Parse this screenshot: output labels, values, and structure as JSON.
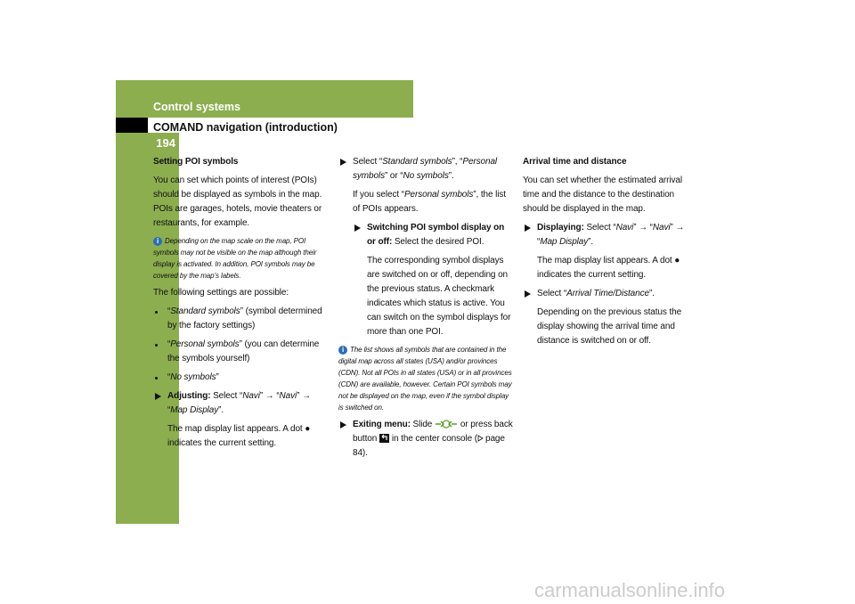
{
  "header": {
    "title": "Control systems",
    "subtitle": "COMAND navigation (introduction)",
    "page_number": "194"
  },
  "col1": {
    "heading": "Setting POI symbols",
    "intro": "You can set which points of interest (POIs) should be displayed as symbols in the map. POIs are garages, hotels, movie theaters or restaurants, for example.",
    "note": "Depending on the map scale on the map, POI symbols may not be visible on the map although their display is activated. In addition, POI symbols may be covered by the map’s labels.",
    "lead": "The following settings are possible:",
    "options": [
      [
        "“",
        "Standard symbols",
        "” (symbol determined by the factory settings)"
      ],
      [
        "“",
        "Personal symbols",
        "” (you can determine the symbols yourself)"
      ],
      [
        "“",
        "No symbols",
        "”"
      ]
    ],
    "step": [
      "Adjusting:",
      " Select “",
      "Navi",
      "” → “",
      "Navi",
      "” → “",
      "Map Display",
      "”."
    ],
    "result": "The map display list appears. A dot ● indicates the current setting."
  },
  "col2": {
    "step": [
      "Select “",
      "Standard symbols",
      "”, “",
      "Personal symbols",
      "” or “",
      "No symbols",
      "”."
    ],
    "if": [
      "If you select “",
      "Personal symbols",
      "”, the list of POIs appears."
    ],
    "substep": [
      "Switching POI symbol display on or off:",
      " Select the desired POI."
    ],
    "subresult": "The corresponding symbol displays are switched on or off, depending on the previous status. A checkmark indicates which status is active. You can switch on the symbol displays for more than one POI.",
    "note": "The list shows all symbols that are contained in the digital map across all states (USA) and/or provinces (CDN). Not all POIs in all states (USA) or in all provinces (CDN) are available, however. Certain POI symbols may not be displayed on the map, even if the symbol display is switched on.",
    "exit": [
      "Exiting menu:",
      " Slide ",
      "or press back button ",
      "in the center console (",
      "page 84)."
    ]
  },
  "col3": {
    "heading": "Arrival time and distance",
    "intro": "You can set whether the estimated arrival time and the distance to the destination should be displayed in the map.",
    "step": [
      "Displaying:",
      " Select “",
      "Navi",
      "” → “",
      "Navi",
      "” → “",
      "Map Display",
      "”."
    ],
    "result": "The map display list appears. A dot ● indicates the current setting.",
    "step2": [
      "Select “",
      "Arrival Time/Distance",
      "”."
    ],
    "result2": "Depending on the previous status the display showing the arrival time and distance is switched on or off."
  },
  "watermark": "carmanualsonline.info"
}
